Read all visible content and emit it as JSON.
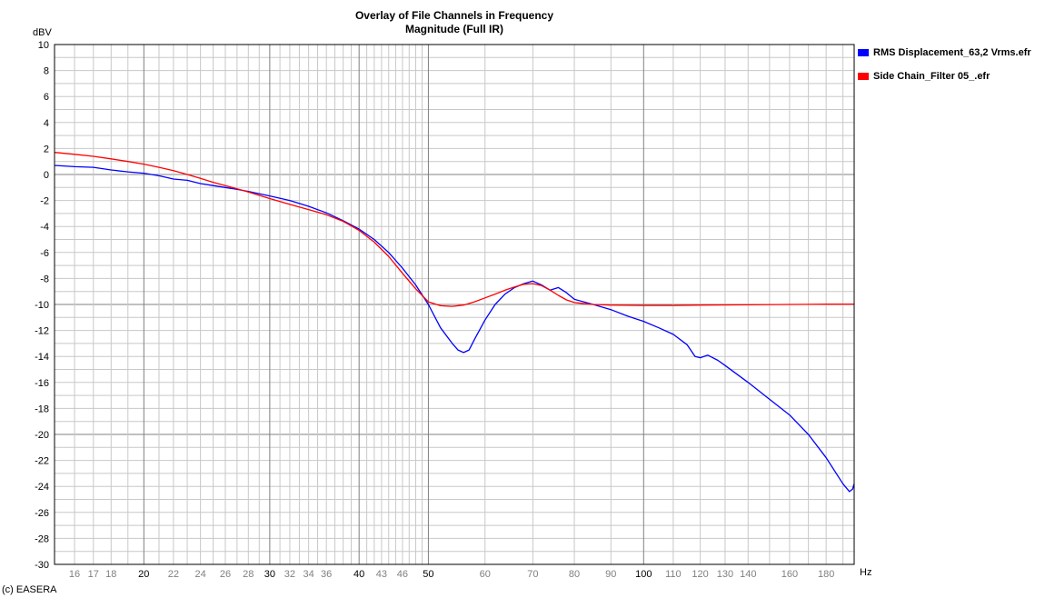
{
  "chart_data": {
    "type": "line",
    "title": "Overlay of File Channels in Frequency",
    "subtitle": "Magnitude (Full IR)",
    "ylabel": "dBV",
    "xlabel": "Hz",
    "xscale": "log",
    "xlim": [
      15,
      197
    ],
    "ylim": [
      -30,
      10
    ],
    "grid": true,
    "legend_position": "right-top",
    "y_ticks": [
      10,
      8,
      6,
      4,
      2,
      0,
      -2,
      -4,
      -6,
      -8,
      -10,
      -12,
      -14,
      -16,
      -18,
      -20,
      -22,
      -24,
      -26,
      -28,
      -30
    ],
    "x_ticks": [
      {
        "value": 16,
        "label": "16",
        "major": false
      },
      {
        "value": 17,
        "label": "17",
        "major": false
      },
      {
        "value": 18,
        "label": "18",
        "major": false
      },
      {
        "value": 20,
        "label": "20",
        "major": true
      },
      {
        "value": 22,
        "label": "22",
        "major": false
      },
      {
        "value": 24,
        "label": "24",
        "major": false
      },
      {
        "value": 26,
        "label": "26",
        "major": false
      },
      {
        "value": 28,
        "label": "28",
        "major": false
      },
      {
        "value": 30,
        "label": "30",
        "major": true
      },
      {
        "value": 32,
        "label": "32",
        "major": false
      },
      {
        "value": 34,
        "label": "34",
        "major": false
      },
      {
        "value": 36,
        "label": "36",
        "major": false
      },
      {
        "value": 40,
        "label": "40",
        "major": true
      },
      {
        "value": 43,
        "label": "43",
        "major": false
      },
      {
        "value": 46,
        "label": "46",
        "major": false
      },
      {
        "value": 50,
        "label": "50",
        "major": true
      },
      {
        "value": 60,
        "label": "60",
        "major": false
      },
      {
        "value": 70,
        "label": "70",
        "major": false
      },
      {
        "value": 80,
        "label": "80",
        "major": false
      },
      {
        "value": 90,
        "label": "90",
        "major": false
      },
      {
        "value": 100,
        "label": "100",
        "major": true
      },
      {
        "value": 110,
        "label": "110",
        "major": false
      },
      {
        "value": 120,
        "label": "120",
        "major": false
      },
      {
        "value": 130,
        "label": "130",
        "major": false
      },
      {
        "value": 140,
        "label": "140",
        "major": false
      },
      {
        "value": 160,
        "label": "160",
        "major": false
      },
      {
        "value": 180,
        "label": "180",
        "major": false
      }
    ],
    "series": [
      {
        "name": "RMS Displacement_63,2 Vrms.efr",
        "color": "#0000ff",
        "points": [
          [
            15,
            0.7
          ],
          [
            16,
            0.6
          ],
          [
            17,
            0.55
          ],
          [
            18,
            0.35
          ],
          [
            19,
            0.2
          ],
          [
            20,
            0.1
          ],
          [
            21,
            -0.1
          ],
          [
            22,
            -0.35
          ],
          [
            23,
            -0.45
          ],
          [
            24,
            -0.7
          ],
          [
            25,
            -0.85
          ],
          [
            26,
            -1.0
          ],
          [
            27,
            -1.15
          ],
          [
            28,
            -1.3
          ],
          [
            30,
            -1.65
          ],
          [
            32,
            -2.0
          ],
          [
            34,
            -2.45
          ],
          [
            36,
            -2.95
          ],
          [
            38,
            -3.55
          ],
          [
            40,
            -4.2
          ],
          [
            42,
            -5.0
          ],
          [
            44,
            -6.0
          ],
          [
            46,
            -7.2
          ],
          [
            48,
            -8.5
          ],
          [
            50,
            -10.0
          ],
          [
            52,
            -11.8
          ],
          [
            54,
            -13.0
          ],
          [
            55,
            -13.5
          ],
          [
            56,
            -13.7
          ],
          [
            57,
            -13.5
          ],
          [
            58,
            -12.7
          ],
          [
            60,
            -11.2
          ],
          [
            62,
            -10.0
          ],
          [
            64,
            -9.2
          ],
          [
            66,
            -8.7
          ],
          [
            68,
            -8.4
          ],
          [
            70,
            -8.2
          ],
          [
            72,
            -8.5
          ],
          [
            74,
            -8.9
          ],
          [
            76,
            -8.7
          ],
          [
            78,
            -9.1
          ],
          [
            80,
            -9.6
          ],
          [
            85,
            -10.0
          ],
          [
            90,
            -10.4
          ],
          [
            95,
            -10.9
          ],
          [
            100,
            -11.3
          ],
          [
            105,
            -11.8
          ],
          [
            110,
            -12.3
          ],
          [
            115,
            -13.1
          ],
          [
            118,
            -14.0
          ],
          [
            120,
            -14.1
          ],
          [
            123,
            -13.9
          ],
          [
            127,
            -14.3
          ],
          [
            130,
            -14.7
          ],
          [
            140,
            -16.0
          ],
          [
            150,
            -17.3
          ],
          [
            160,
            -18.5
          ],
          [
            170,
            -20.0
          ],
          [
            180,
            -21.8
          ],
          [
            190,
            -23.8
          ],
          [
            194,
            -24.4
          ],
          [
            196,
            -24.2
          ],
          [
            197,
            -23.8
          ]
        ]
      },
      {
        "name": "Side Chain_Filter 05_.efr",
        "color": "#ff0000",
        "points": [
          [
            15,
            1.7
          ],
          [
            16,
            1.55
          ],
          [
            17,
            1.4
          ],
          [
            18,
            1.2
          ],
          [
            19,
            1.0
          ],
          [
            20,
            0.8
          ],
          [
            21,
            0.55
          ],
          [
            22,
            0.3
          ],
          [
            23,
            0.0
          ],
          [
            24,
            -0.3
          ],
          [
            25,
            -0.6
          ],
          [
            26,
            -0.85
          ],
          [
            27,
            -1.1
          ],
          [
            28,
            -1.35
          ],
          [
            30,
            -1.85
          ],
          [
            32,
            -2.3
          ],
          [
            34,
            -2.7
          ],
          [
            36,
            -3.1
          ],
          [
            38,
            -3.6
          ],
          [
            40,
            -4.3
          ],
          [
            42,
            -5.2
          ],
          [
            44,
            -6.3
          ],
          [
            46,
            -7.6
          ],
          [
            48,
            -8.8
          ],
          [
            50,
            -9.8
          ],
          [
            52,
            -10.1
          ],
          [
            54,
            -10.15
          ],
          [
            56,
            -10.05
          ],
          [
            58,
            -9.8
          ],
          [
            60,
            -9.5
          ],
          [
            62,
            -9.2
          ],
          [
            64,
            -8.9
          ],
          [
            66,
            -8.65
          ],
          [
            68,
            -8.45
          ],
          [
            70,
            -8.4
          ],
          [
            72,
            -8.55
          ],
          [
            74,
            -8.9
          ],
          [
            76,
            -9.3
          ],
          [
            78,
            -9.65
          ],
          [
            80,
            -9.85
          ],
          [
            85,
            -10.0
          ],
          [
            90,
            -10.05
          ],
          [
            100,
            -10.08
          ],
          [
            110,
            -10.08
          ],
          [
            120,
            -10.05
          ],
          [
            140,
            -10.03
          ],
          [
            160,
            -10.0
          ],
          [
            180,
            -9.98
          ],
          [
            197,
            -9.97
          ]
        ]
      }
    ]
  },
  "footer": "(c) EASERA"
}
